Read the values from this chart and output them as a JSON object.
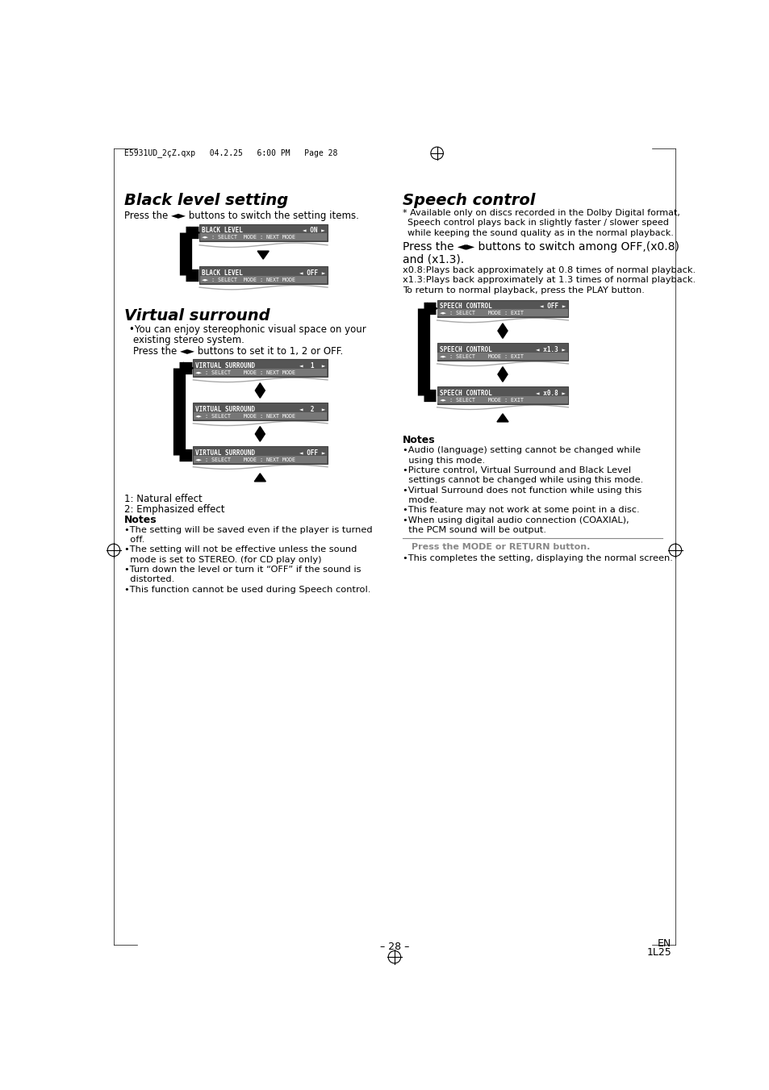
{
  "bg_color": "#ffffff",
  "header_text": "E5931UD_2çZ.qxp   04.2.25   6:00 PM   Page 28",
  "footer_page": "– 28 –",
  "footer_right": "EN\n1L25"
}
